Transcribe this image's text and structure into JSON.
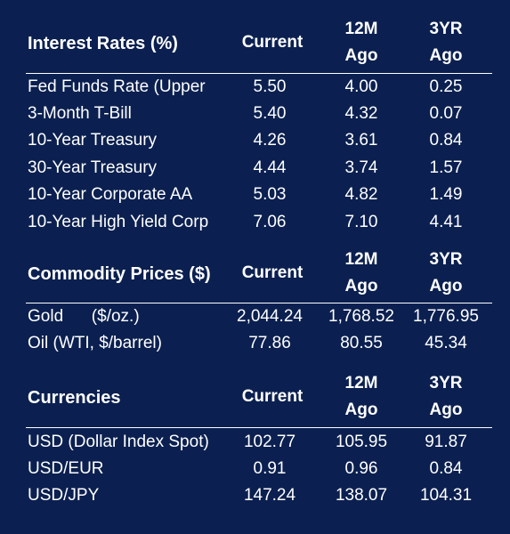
{
  "interest": {
    "title": "Interest Rates (%)",
    "cols": [
      "Current",
      "12M\nAgo",
      "3YR\nAgo"
    ],
    "rows": [
      {
        "label": "Fed Funds Rate (Upper",
        "current": "5.50",
        "m12": "4.00",
        "y3": "0.25"
      },
      {
        "label": "3-Month T-Bill",
        "current": "5.40",
        "m12": "4.32",
        "y3": "0.07"
      },
      {
        "label": "10-Year Treasury",
        "current": "4.26",
        "m12": "3.61",
        "y3": "0.84"
      },
      {
        "label": "30-Year Treasury",
        "current": "4.44",
        "m12": "3.74",
        "y3": "1.57"
      },
      {
        "label": "10-Year Corporate AA",
        "current": "5.03",
        "m12": "4.82",
        "y3": "1.49"
      },
      {
        "label": "10-Year High Yield Corp",
        "current": "7.06",
        "m12": "7.10",
        "y3": "4.41"
      }
    ]
  },
  "commodity": {
    "title": "Commodity Prices ($)",
    "cols": [
      "Current",
      "12M\nAgo",
      "3YR\nAgo"
    ],
    "rows": [
      {
        "label": "Gold      ($/oz.)",
        "current": "2,044.24",
        "m12": "1,768.52",
        "y3": "1,776.95"
      },
      {
        "label": "Oil (WTI, $/barrel)",
        "current": "77.86",
        "m12": "80.55",
        "y3": "45.34"
      }
    ]
  },
  "currencies": {
    "title": "Currencies",
    "cols": [
      "Current",
      "12M\nAgo",
      "3YR\nAgo"
    ],
    "rows": [
      {
        "label": "USD (Dollar Index Spot)",
        "current": "102.77",
        "m12": "105.95",
        "y3": "91.87"
      },
      {
        "label": "USD/EUR",
        "current": "0.91",
        "m12": "0.96",
        "y3": "0.84"
      },
      {
        "label": "USD/JPY",
        "current": "147.24",
        "m12": "138.07",
        "y3": "104.31"
      }
    ]
  }
}
